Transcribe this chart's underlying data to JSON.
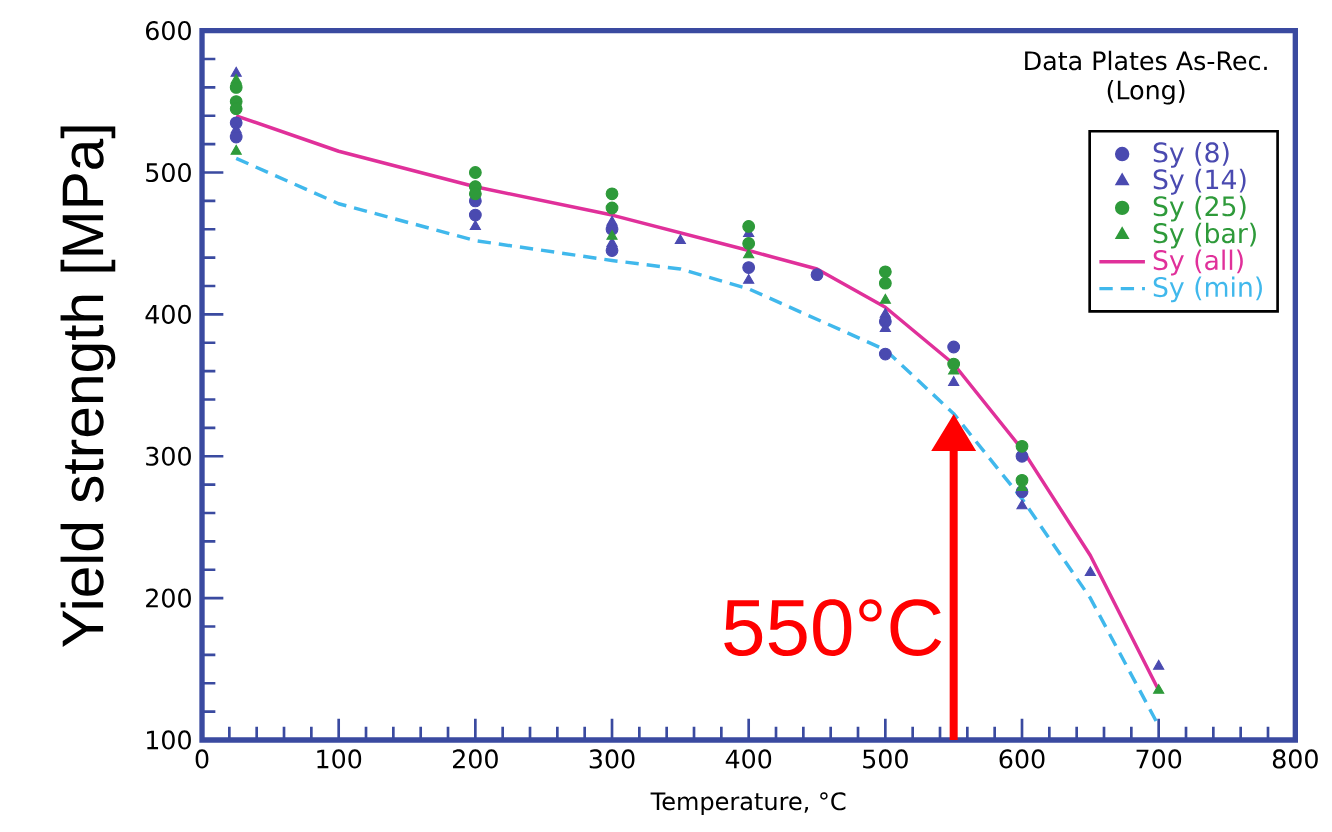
{
  "chart_data": {
    "type": "scatter",
    "title": "Data Plates As-Rec.",
    "subtitle": "(Long)",
    "xlabel": "Temperature, °C",
    "ylabel": "Yield strength [MPa]",
    "xlim": [
      0,
      800
    ],
    "xticks": [
      0,
      100,
      200,
      300,
      400,
      500,
      600,
      700,
      800
    ],
    "ylim": [
      100,
      600
    ],
    "yticks": [
      100,
      200,
      300,
      400,
      500,
      600
    ],
    "grid": false,
    "legend": "top right",
    "series": [
      {
        "name": "Sy (8)",
        "color": "#4a4ab0",
        "marker": "circle",
        "x": [
          25,
          25,
          200,
          200,
          300,
          300,
          400,
          450,
          500,
          500,
          550,
          600,
          600
        ],
        "values": [
          525,
          535,
          470,
          480,
          445,
          460,
          433,
          428,
          372,
          395,
          377,
          300,
          275
        ]
      },
      {
        "name": "Sy (14)",
        "color": "#4a4ab0",
        "marker": "triangle",
        "x": [
          25,
          25,
          200,
          300,
          300,
          350,
          400,
          400,
          500,
          500,
          550,
          600,
          650,
          700
        ],
        "values": [
          570,
          530,
          462,
          450,
          465,
          452,
          424,
          457,
          400,
          390,
          352,
          265,
          218,
          152
        ]
      },
      {
        "name": "Sy (25)",
        "color": "#2e9a3a",
        "marker": "circle",
        "x": [
          25,
          25,
          25,
          200,
          200,
          200,
          300,
          300,
          400,
          400,
          500,
          500,
          550,
          600,
          600
        ],
        "values": [
          560,
          550,
          545,
          500,
          490,
          485,
          485,
          475,
          462,
          450,
          430,
          422,
          365,
          307,
          283
        ]
      },
      {
        "name": "Sy (bar)",
        "color": "#2e9a3a",
        "marker": "triangle",
        "x": [
          25,
          25,
          300,
          400,
          500,
          550,
          600,
          700
        ],
        "values": [
          565,
          515,
          455,
          442,
          410,
          360,
          278,
          135
        ]
      },
      {
        "name": "Sy (all)",
        "type": "line",
        "color": "#e0309a",
        "line_style": "solid",
        "x": [
          25,
          100,
          200,
          300,
          400,
          450,
          500,
          550,
          600,
          650,
          700
        ],
        "values": [
          540,
          515,
          490,
          470,
          445,
          432,
          405,
          365,
          305,
          230,
          135
        ]
      },
      {
        "name": "Sy (min)",
        "type": "line",
        "color": "#40b8ec",
        "line_style": "dashed",
        "x": [
          25,
          100,
          200,
          300,
          350,
          400,
          500,
          550,
          600,
          650,
          700
        ],
        "values": [
          510,
          478,
          452,
          438,
          432,
          418,
          375,
          330,
          270,
          200,
          110
        ]
      }
    ],
    "annotations": [
      {
        "text": "550°C",
        "x": 550,
        "y": 330
      }
    ]
  }
}
